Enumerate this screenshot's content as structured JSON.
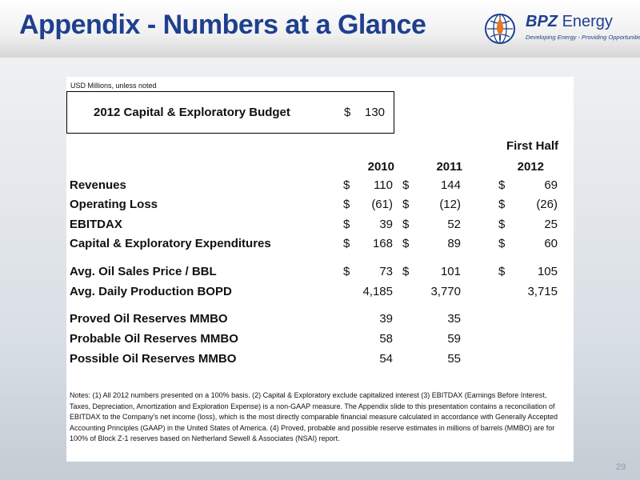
{
  "slide": {
    "title": "Appendix - Numbers at a Glance",
    "page_number": "29",
    "logo": {
      "brand_bold": "BPZ",
      "brand_light": "Energy",
      "tagline": "Developing Energy - Providing Opportunities",
      "icon": "globe-icon",
      "colors": {
        "blue": "#1f3f8f",
        "orange": "#e87722"
      }
    },
    "units_note": "USD Millions, unless noted",
    "budget": {
      "label": "2012 Capital & Exploratory Budget",
      "dollar": "$",
      "value": "130"
    },
    "table": {
      "header_top": "First Half",
      "columns": [
        "2010",
        "2011",
        "2012"
      ],
      "rows": [
        {
          "label": "Revenues",
          "d1": "$",
          "v1": "110",
          "d2": "$",
          "v2": "144",
          "d3": "$",
          "v3": "69"
        },
        {
          "label": "Operating Loss",
          "d1": "$",
          "v1": "(61)",
          "d2": "$",
          "v2": "(12)",
          "d3": "$",
          "v3": "(26)"
        },
        {
          "label": "EBITDAX",
          "d1": "$",
          "v1": "39",
          "d2": "$",
          "v2": "52",
          "d3": "$",
          "v3": "25"
        },
        {
          "label": "Capital & Exploratory Expenditures",
          "d1": "$",
          "v1": "168",
          "d2": "$",
          "v2": "89",
          "d3": "$",
          "v3": "60"
        },
        {
          "label": "Avg. Oil Sales Price / BBL",
          "d1": "$",
          "v1": "73",
          "d2": "$",
          "v2": "101",
          "d3": "$",
          "v3": "105"
        },
        {
          "label": "Avg. Daily Production BOPD",
          "d1": "",
          "v1": "4,185",
          "d2": "",
          "v2": "3,770",
          "d3": "",
          "v3": "3,715"
        },
        {
          "label": "Proved Oil Reserves MMBO",
          "d1": "",
          "v1": "39",
          "d2": "",
          "v2": "35",
          "d3": "",
          "v3": ""
        },
        {
          "label": "Probable Oil Reserves MMBO",
          "d1": "",
          "v1": "58",
          "d2": "",
          "v2": "59",
          "d3": "",
          "v3": ""
        },
        {
          "label": "Possible Oil Reserves MMBO",
          "d1": "",
          "v1": "54",
          "d2": "",
          "v2": "55",
          "d3": "",
          "v3": ""
        }
      ]
    },
    "notes": "Notes: (1) All 2012 numbers presented on a 100% basis. (2) Capital & Exploratory exclude capitalized interest (3) EBITDAX (Earnings Before Interest, Taxes, Depreciation, Amortization and Exploration Expense) is a non-GAAP measure. The Appendix slide to this presentation contains a reconciliation of EBITDAX to the Company's net income (loss), which is the most directly comparable financial measure calculated in accordance with Generally Accepted Accounting Principles (GAAP) in the United States of America. (4) Proved, probable and possible reserve estimates in millions of barrels (MMBO) are for 100% of Block Z-1 reserves based on Netherland Sewell & Associates (NSAI) report."
  }
}
